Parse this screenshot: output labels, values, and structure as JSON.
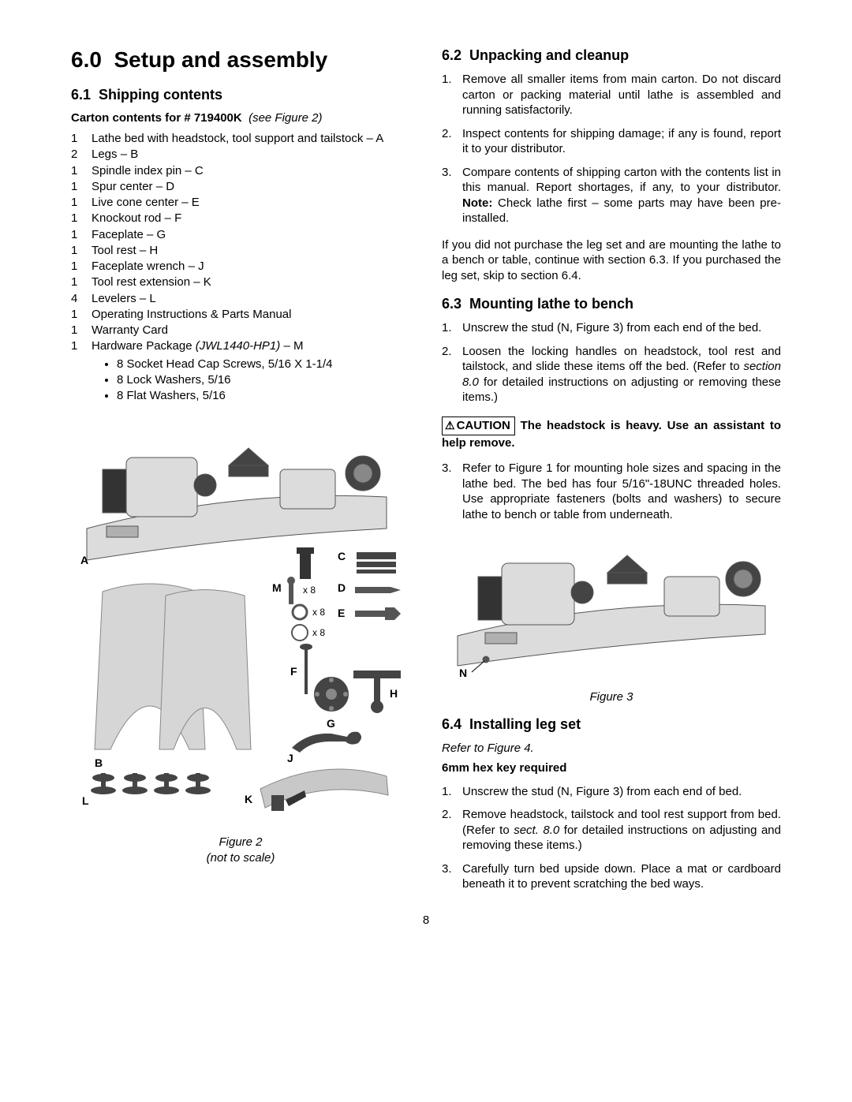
{
  "page_number": "8",
  "left": {
    "main_heading_num": "6.0",
    "main_heading": "Setup and assembly",
    "sec61_num": "6.1",
    "sec61_title": "Shipping contents",
    "carton_bold": "Carton contents for # 719400K",
    "carton_italic": "(see Figure 2)",
    "contents": [
      {
        "qty": "1",
        "desc": "Lathe bed with headstock, tool support and tailstock – A"
      },
      {
        "qty": "2",
        "desc": "Legs – B"
      },
      {
        "qty": "1",
        "desc": "Spindle index pin – C"
      },
      {
        "qty": "1",
        "desc": "Spur center – D"
      },
      {
        "qty": "1",
        "desc": "Live cone center – E"
      },
      {
        "qty": "1",
        "desc": "Knockout rod – F"
      },
      {
        "qty": "1",
        "desc": "Faceplate – G"
      },
      {
        "qty": "1",
        "desc": "Tool rest – H"
      },
      {
        "qty": "1",
        "desc": "Faceplate wrench – J"
      },
      {
        "qty": "1",
        "desc": "Tool rest extension – K"
      },
      {
        "qty": "4",
        "desc": "Levelers – L"
      },
      {
        "qty": "1",
        "desc": "Operating Instructions & Parts Manual"
      },
      {
        "qty": "1",
        "desc": "Warranty Card"
      }
    ],
    "hardware_qty": "1",
    "hardware_desc_pre": "Hardware Package ",
    "hardware_desc_italic": "(JWL1440-HP1)",
    "hardware_desc_post": " – M",
    "hardware_sub": [
      "8    Socket Head Cap Screws, 5/16 X 1-1/4",
      "8    Lock Washers, 5/16",
      "8    Flat Washers, 5/16"
    ],
    "fig2_caption_l1": "Figure 2",
    "fig2_caption_l2": "(not to scale)",
    "fig2_labels": {
      "A": "A",
      "B": "B",
      "C": "C",
      "D": "D",
      "E": "E",
      "F": "F",
      "G": "G",
      "H": "H",
      "J": "J",
      "K": "K",
      "L": "L",
      "M": "M",
      "x8a": "x 8",
      "x8b": "x 8",
      "x8c": "x 8"
    }
  },
  "right": {
    "sec62_num": "6.2",
    "sec62_title": "Unpacking and cleanup",
    "sec62_items": [
      "Remove all smaller items from main carton. Do not discard carton or packing material until lathe is assembled and running satisfactorily.",
      "Inspect contents for shipping damage; if any is found, report it to your distributor."
    ],
    "sec62_item3_pre": "Compare contents of shipping carton with the contents list in this manual. Report shortages, if any, to your distributor. ",
    "sec62_item3_note": "Note:",
    "sec62_item3_post": " Check lathe first – some parts may have been pre-installed.",
    "sec62_para": "If you did not purchase the leg set and are mounting the lathe to a bench or table, continue with section 6.3. If you purchased the leg set, skip to section 6.4.",
    "sec63_num": "6.3",
    "sec63_title": "Mounting lathe to bench",
    "sec63_item1": "Unscrew the stud (N, Figure 3) from each end of the bed.",
    "sec63_item2_pre": "Loosen the locking handles on headstock, tool rest and tailstock, and slide these items off the bed. (Refer to ",
    "sec63_item2_italic": "section 8.0",
    "sec63_item2_post": " for detailed instructions on adjusting or removing these items.)",
    "caution_label": "CAUTION",
    "caution_text": "The headstock is heavy. Use an assistant to help remove.",
    "sec63_item3": "Refer to Figure 1 for mounting hole sizes and spacing in the lathe bed. The bed has four 5/16\"-18UNC threaded holes. Use appropriate fasteners (bolts and washers) to secure lathe to bench or table from underneath.",
    "fig3_caption": "Figure 3",
    "fig3_N": "N",
    "sec64_num": "6.4",
    "sec64_title": "Installing leg set",
    "sec64_refer": "Refer to Figure 4.",
    "sec64_req": "6mm hex key required",
    "sec64_item1": "Unscrew the stud (N, Figure 3) from each end of bed.",
    "sec64_item2_pre": "Remove headstock, tailstock and tool rest support from bed. (Refer to ",
    "sec64_item2_italic": "sect. 8.0",
    "sec64_item2_post": " for detailed instructions on adjusting and removing these items.)",
    "sec64_item3": "Carefully turn bed upside down. Place a mat or cardboard beneath it to prevent scratching the bed ways."
  }
}
